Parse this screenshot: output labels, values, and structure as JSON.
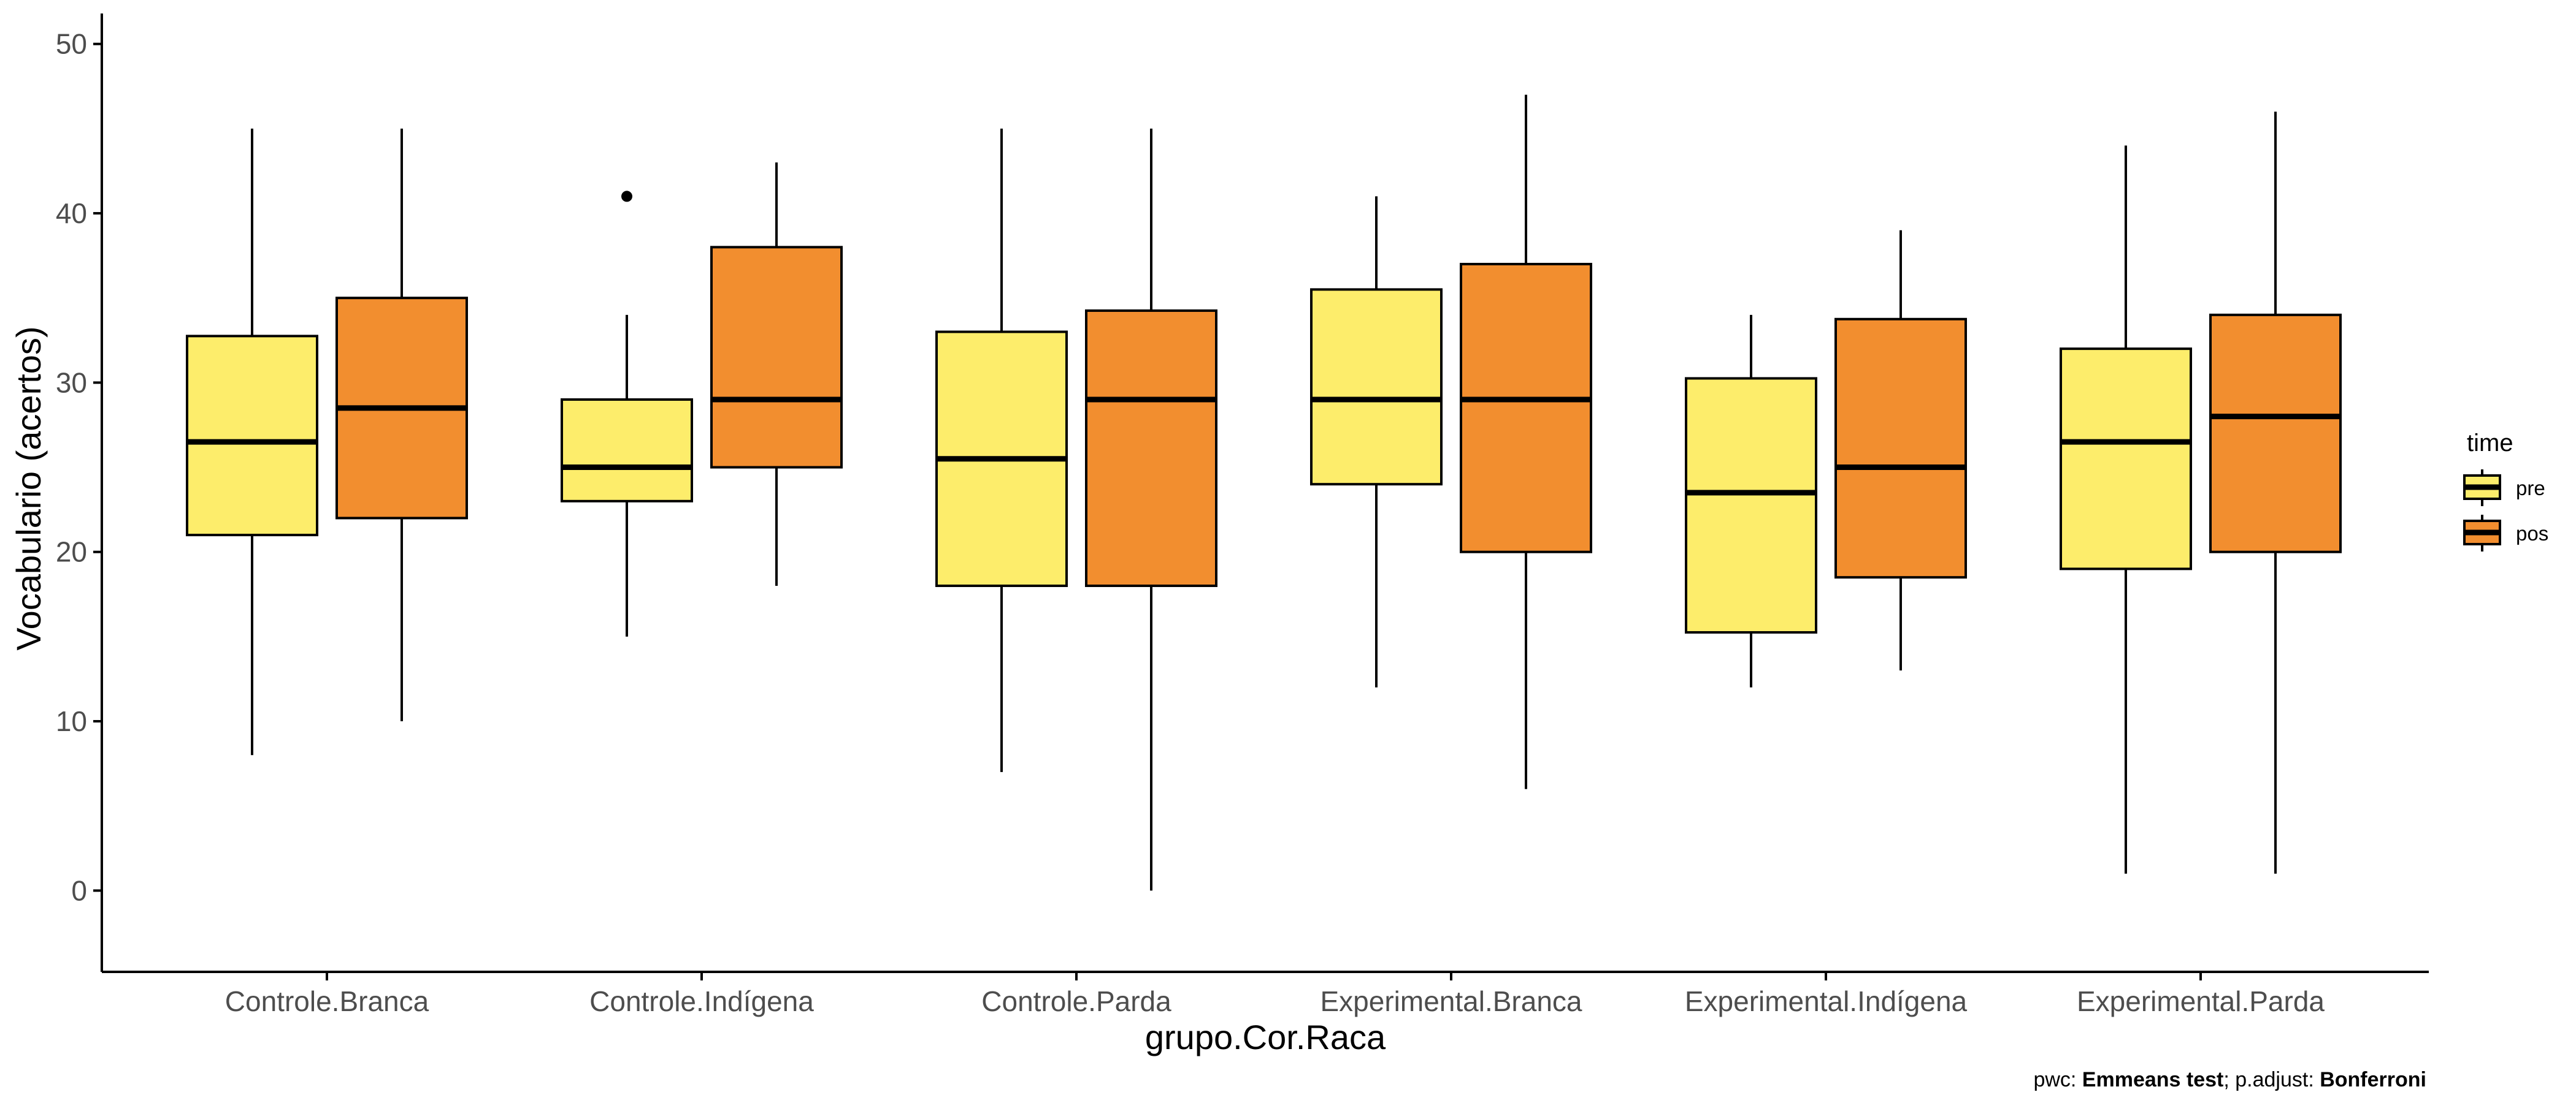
{
  "chart_data": {
    "type": "box",
    "xlabel": "grupo.Cor.Raca",
    "ylabel": "Vocabulario (acertos)",
    "ylim": [
      -4.8,
      51.8
    ],
    "yticks": [
      0,
      10,
      20,
      30,
      40,
      50
    ],
    "grid": false,
    "legend": {
      "title": "time",
      "position": "right"
    },
    "categories": [
      "Controle.Branca",
      "Controle.Indígena",
      "Controle.Parda",
      "Experimental.Branca",
      "Experimental.Indígena",
      "Experimental.Parda"
    ],
    "series": [
      {
        "name": "pre",
        "color": "#FDED6B",
        "boxes": [
          {
            "min": 8,
            "q1": 21,
            "median": 26.5,
            "q3": 32.75,
            "max": 45,
            "outliers": []
          },
          {
            "min": 15,
            "q1": 23,
            "median": 25,
            "q3": 29,
            "max": 34,
            "outliers": [
              41
            ]
          },
          {
            "min": 7,
            "q1": 18,
            "median": 25.5,
            "q3": 33,
            "max": 45,
            "outliers": []
          },
          {
            "min": 12,
            "q1": 24,
            "median": 29,
            "q3": 35.5,
            "max": 41,
            "outliers": []
          },
          {
            "min": 12,
            "q1": 15.25,
            "median": 23.5,
            "q3": 30.25,
            "max": 34,
            "outliers": []
          },
          {
            "min": 1,
            "q1": 19,
            "median": 26.5,
            "q3": 32,
            "max": 44,
            "outliers": []
          }
        ]
      },
      {
        "name": "pos",
        "color": "#F28E2F",
        "boxes": [
          {
            "min": 10,
            "q1": 22,
            "median": 28.5,
            "q3": 35,
            "max": 45,
            "outliers": []
          },
          {
            "min": 18,
            "q1": 25,
            "median": 29,
            "q3": 38,
            "max": 43,
            "outliers": []
          },
          {
            "min": 0,
            "q1": 18,
            "median": 29,
            "q3": 34.25,
            "max": 45,
            "outliers": []
          },
          {
            "min": 6,
            "q1": 20,
            "median": 29,
            "q3": 37,
            "max": 47,
            "outliers": []
          },
          {
            "min": 13,
            "q1": 18.5,
            "median": 25,
            "q3": 33.75,
            "max": 39,
            "outliers": []
          },
          {
            "min": 1,
            "q1": 20,
            "median": 28,
            "q3": 34,
            "max": 46,
            "outliers": []
          }
        ]
      }
    ],
    "caption": {
      "prefix": "pwc: ",
      "method": "Emmeans test",
      "middle": "; p.adjust: ",
      "adjust": "Bonferroni"
    }
  }
}
